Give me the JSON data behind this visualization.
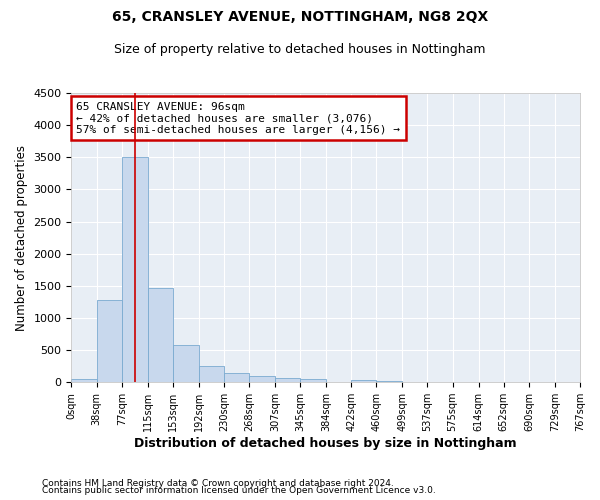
{
  "title1": "65, CRANSLEY AVENUE, NOTTINGHAM, NG8 2QX",
  "title2": "Size of property relative to detached houses in Nottingham",
  "xlabel": "Distribution of detached houses by size in Nottingham",
  "ylabel": "Number of detached properties",
  "footnote1": "Contains HM Land Registry data © Crown copyright and database right 2024.",
  "footnote2": "Contains public sector information licensed under the Open Government Licence v3.0.",
  "annotation_title": "65 CRANSLEY AVENUE: 96sqm",
  "annotation_line2": "← 42% of detached houses are smaller (3,076)",
  "annotation_line3": "57% of semi-detached houses are larger (4,156) →",
  "property_size_sqm": 96,
  "bin_edges": [
    0,
    38,
    77,
    115,
    153,
    192,
    230,
    268,
    307,
    345,
    384,
    422,
    460,
    499,
    537,
    575,
    614,
    652,
    690,
    729,
    767
  ],
  "bar_heights": [
    50,
    1280,
    3500,
    1460,
    580,
    245,
    140,
    90,
    65,
    50,
    0,
    30,
    25,
    0,
    0,
    0,
    0,
    0,
    0,
    0
  ],
  "bar_color": "#c8d8ed",
  "bar_edge_color": "#7aaad0",
  "vline_color": "#cc0000",
  "vline_x": 96,
  "ylim": [
    0,
    4500
  ],
  "yticks": [
    0,
    500,
    1000,
    1500,
    2000,
    2500,
    3000,
    3500,
    4000,
    4500
  ],
  "bg_color": "#e8eef5",
  "annotation_box_color": "#cc0000",
  "grid_color": "#ffffff"
}
